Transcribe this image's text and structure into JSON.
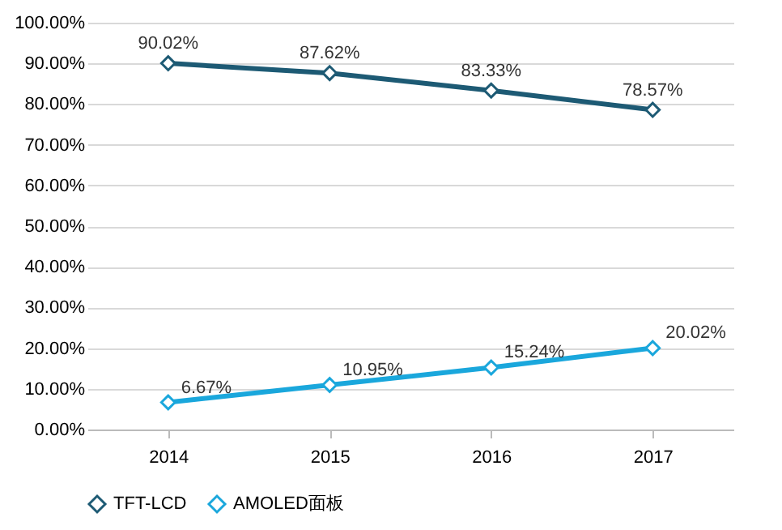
{
  "chart_data": {
    "type": "line",
    "categories": [
      "2014",
      "2015",
      "2016",
      "2017"
    ],
    "series": [
      {
        "name": "TFT-LCD",
        "color": "#1d5a74",
        "values": [
          90.02,
          87.62,
          83.33,
          78.57
        ],
        "value_labels": [
          "90.02%",
          "87.62%",
          "83.33%",
          "78.57%"
        ]
      },
      {
        "name": "AMOLED面板",
        "color": "#1aa7dc",
        "values": [
          6.67,
          10.95,
          15.24,
          20.02
        ],
        "value_labels": [
          "6.67%",
          "10.95%",
          "15.24%",
          "20.02%"
        ]
      }
    ],
    "ylim": [
      0,
      100
    ],
    "yticks": [
      {
        "value": 0,
        "label": "0.00%"
      },
      {
        "value": 10,
        "label": "10.00%"
      },
      {
        "value": 20,
        "label": "20.00%"
      },
      {
        "value": 30,
        "label": "30.00%"
      },
      {
        "value": 40,
        "label": "40.00%"
      },
      {
        "value": 50,
        "label": "50.00%"
      },
      {
        "value": 60,
        "label": "60.00%"
      },
      {
        "value": 70,
        "label": "70.00%"
      },
      {
        "value": 80,
        "label": "80.00%"
      },
      {
        "value": 90,
        "label": "90.00%"
      },
      {
        "value": 100,
        "label": "100.00%"
      }
    ],
    "grid": "y",
    "legend": "bottom",
    "marker": "diamond",
    "line_style": "solid"
  }
}
